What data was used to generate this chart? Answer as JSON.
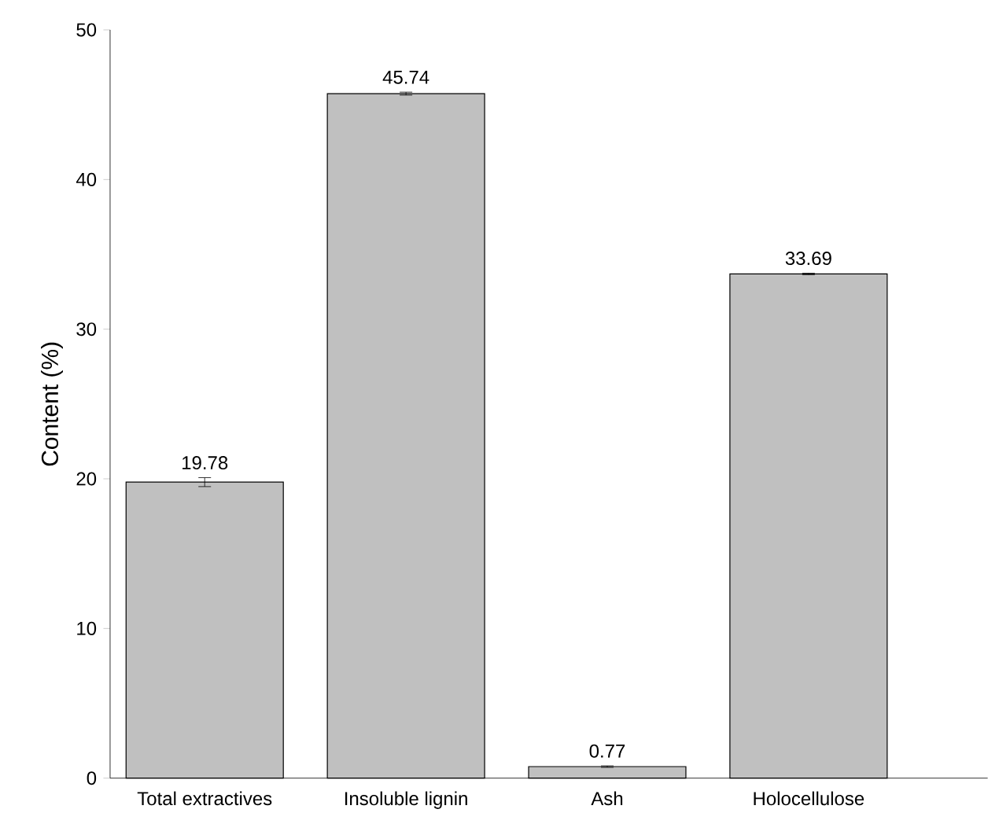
{
  "chart_data": {
    "type": "bar",
    "ylabel": "Content (%)",
    "categories": [
      "Total extractives",
      "Insoluble lignin",
      "Ash",
      "Holocellulose"
    ],
    "values": [
      19.78,
      45.74,
      0.77,
      33.69
    ],
    "errors": [
      0.3,
      0.1,
      0.05,
      0.05
    ],
    "color": "#c0c0c0",
    "ylim": [
      0,
      50
    ],
    "yticks": [
      0,
      10,
      20,
      30,
      40,
      50
    ],
    "data_labels": true
  }
}
